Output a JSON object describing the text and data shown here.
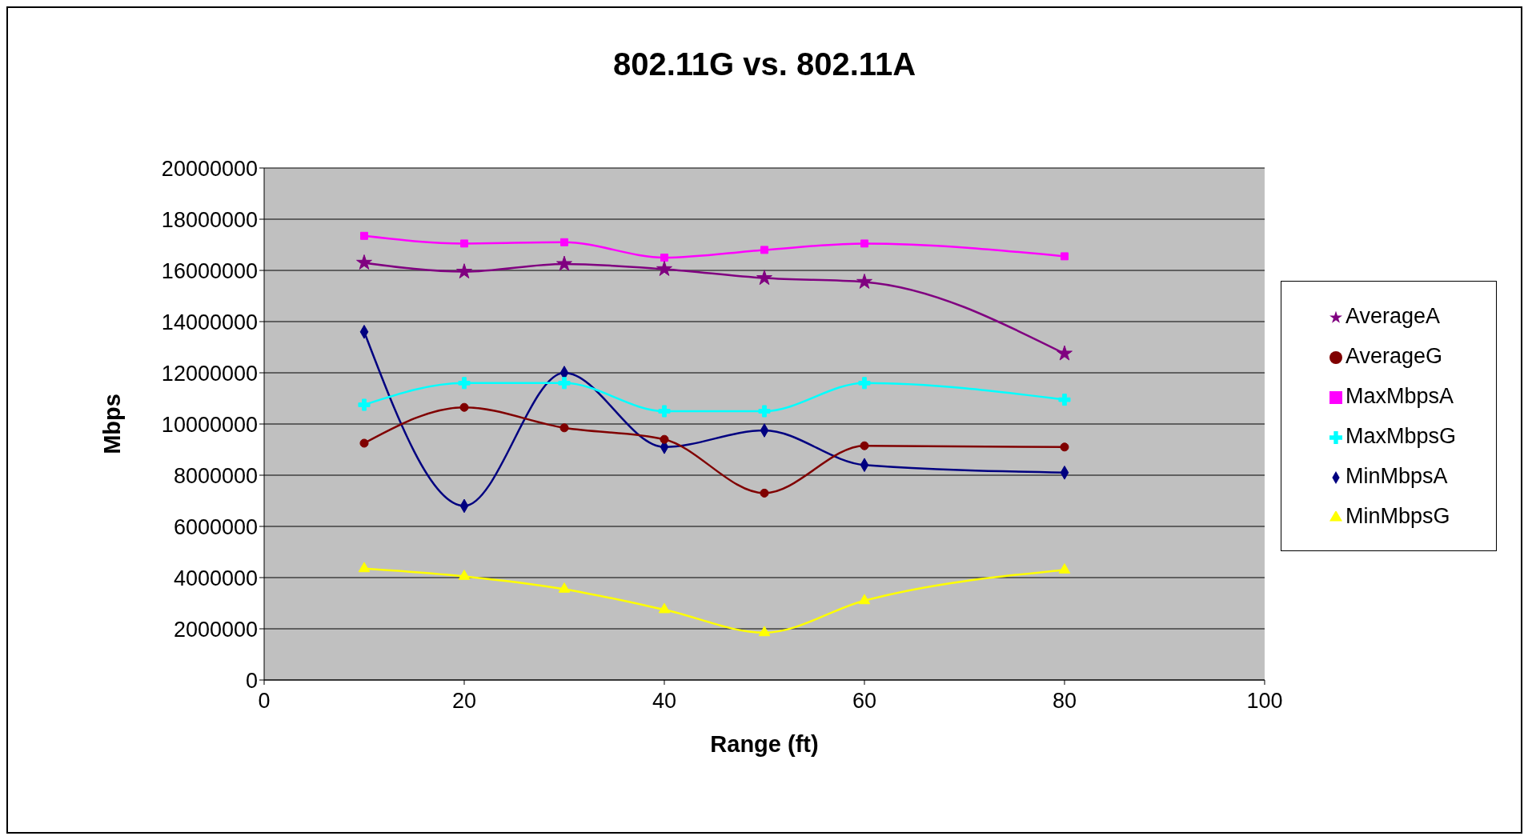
{
  "chart_data": {
    "type": "line",
    "title": "802.11G vs. 802.11A",
    "xlabel": "Range (ft)",
    "ylabel": "Mbps",
    "x": [
      10,
      20,
      30,
      40,
      50,
      60,
      80
    ],
    "series": [
      {
        "name": "MinMbpsA",
        "color": "#000080",
        "marker": "diamond",
        "values": [
          13600000,
          6800000,
          12000000,
          9100000,
          9750000,
          8400000,
          8100000
        ]
      },
      {
        "name": "MaxMbpsA",
        "color": "#ff00ff",
        "marker": "square",
        "values": [
          17350000,
          17050000,
          17100000,
          16500000,
          16800000,
          17050000,
          16550000
        ]
      },
      {
        "name": "MinMbpsG",
        "color": "#ffff00",
        "marker": "triangle",
        "values": [
          4350000,
          4050000,
          3550000,
          2750000,
          1850000,
          3100000,
          4300000
        ]
      },
      {
        "name": "MaxMbpsG",
        "color": "#00ffff",
        "marker": "cross",
        "values": [
          10750000,
          11600000,
          11600000,
          10500000,
          10500000,
          11600000,
          10950000
        ]
      },
      {
        "name": "AverageA",
        "color": "#800080",
        "marker": "star",
        "values": [
          16300000,
          15950000,
          16250000,
          16050000,
          15700000,
          15550000,
          12750000
        ]
      },
      {
        "name": "AverageG",
        "color": "#800000",
        "marker": "circle",
        "values": [
          9250000,
          10650000,
          9850000,
          9400000,
          7300000,
          9150000,
          9100000
        ]
      }
    ],
    "xlim": [
      0,
      100
    ],
    "xticks": [
      0,
      20,
      40,
      60,
      80,
      100
    ],
    "ylim": [
      0,
      20000000
    ],
    "yticks": [
      0,
      2000000,
      4000000,
      6000000,
      8000000,
      10000000,
      12000000,
      14000000,
      16000000,
      18000000,
      20000000
    ],
    "grid": "y",
    "legend": "right",
    "line_style": "solid"
  }
}
